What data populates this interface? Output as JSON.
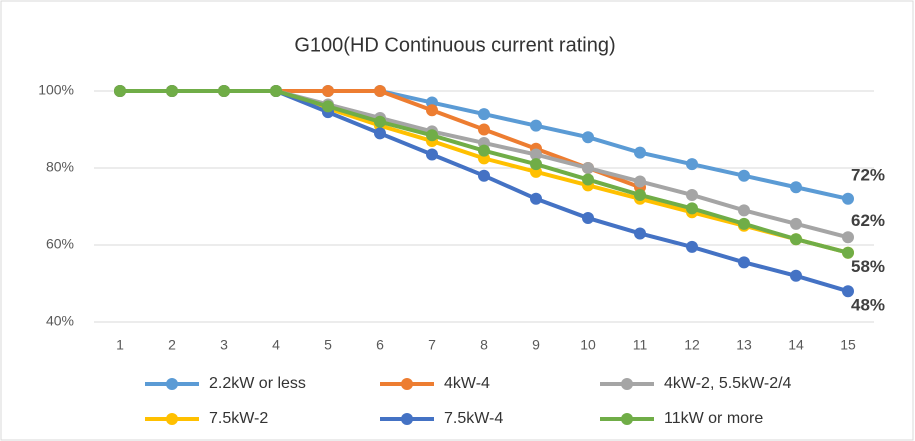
{
  "chart_data": {
    "type": "line",
    "title": "G100(HD Continuous current rating)",
    "categories": [
      "1",
      "2",
      "3",
      "4",
      "5",
      "6",
      "7",
      "8",
      "9",
      "10",
      "11",
      "12",
      "13",
      "14",
      "15"
    ],
    "ylim": [
      40,
      100
    ],
    "yticks": [
      {
        "value": 40,
        "label": "40%"
      },
      {
        "value": 60,
        "label": "60%"
      },
      {
        "value": 80,
        "label": "80%"
      },
      {
        "value": 100,
        "label": "100%"
      }
    ],
    "grid": true,
    "legend": "bottom",
    "series": [
      {
        "name": "2.2kW or less",
        "color": "#5b9bd5",
        "values": [
          100,
          100,
          100,
          100,
          100,
          100,
          97,
          94,
          91,
          88,
          84,
          81,
          78,
          75,
          72
        ],
        "value_labels": [
          null,
          null,
          null,
          null,
          null,
          null,
          null,
          null,
          null,
          null,
          null,
          null,
          null,
          null,
          "72%"
        ]
      },
      {
        "name": "4kW-4",
        "color": "#ed7d31",
        "values": [
          100,
          100,
          100,
          100,
          100,
          100,
          95,
          90,
          85,
          80,
          75,
          null,
          null,
          null,
          null
        ]
      },
      {
        "name": "4kW-2, 5.5kW-2/4",
        "color": "#a5a5a5",
        "values": [
          100,
          100,
          100,
          100,
          96.5,
          93,
          89.5,
          86.5,
          83.5,
          80,
          76.5,
          73,
          69,
          65.5,
          62
        ],
        "value_labels": [
          null,
          null,
          null,
          null,
          null,
          null,
          null,
          null,
          null,
          null,
          null,
          null,
          null,
          null,
          "62%"
        ]
      },
      {
        "name": "7.5kW-2",
        "color": "#ffc000",
        "values": [
          100,
          100,
          100,
          100,
          95.5,
          91,
          87,
          82.5,
          79,
          75.5,
          72,
          68.5,
          65,
          61.5,
          58
        ]
      },
      {
        "name": "7.5kW-4",
        "color": "#4472c4",
        "values": [
          100,
          100,
          100,
          100,
          94.5,
          89,
          83.5,
          78,
          72,
          67,
          63,
          59.5,
          55.5,
          52,
          48
        ],
        "value_labels": [
          null,
          null,
          null,
          null,
          null,
          null,
          null,
          null,
          null,
          null,
          null,
          null,
          null,
          null,
          "48%"
        ]
      },
      {
        "name": "11kW or more",
        "color": "#70ad47",
        "values": [
          100,
          100,
          100,
          100,
          96,
          92,
          88.5,
          84.5,
          81,
          77,
          73,
          69.5,
          65.5,
          61.5,
          58
        ],
        "value_labels": [
          null,
          null,
          null,
          null,
          null,
          null,
          null,
          null,
          null,
          null,
          null,
          null,
          null,
          null,
          "58%"
        ]
      }
    ]
  }
}
